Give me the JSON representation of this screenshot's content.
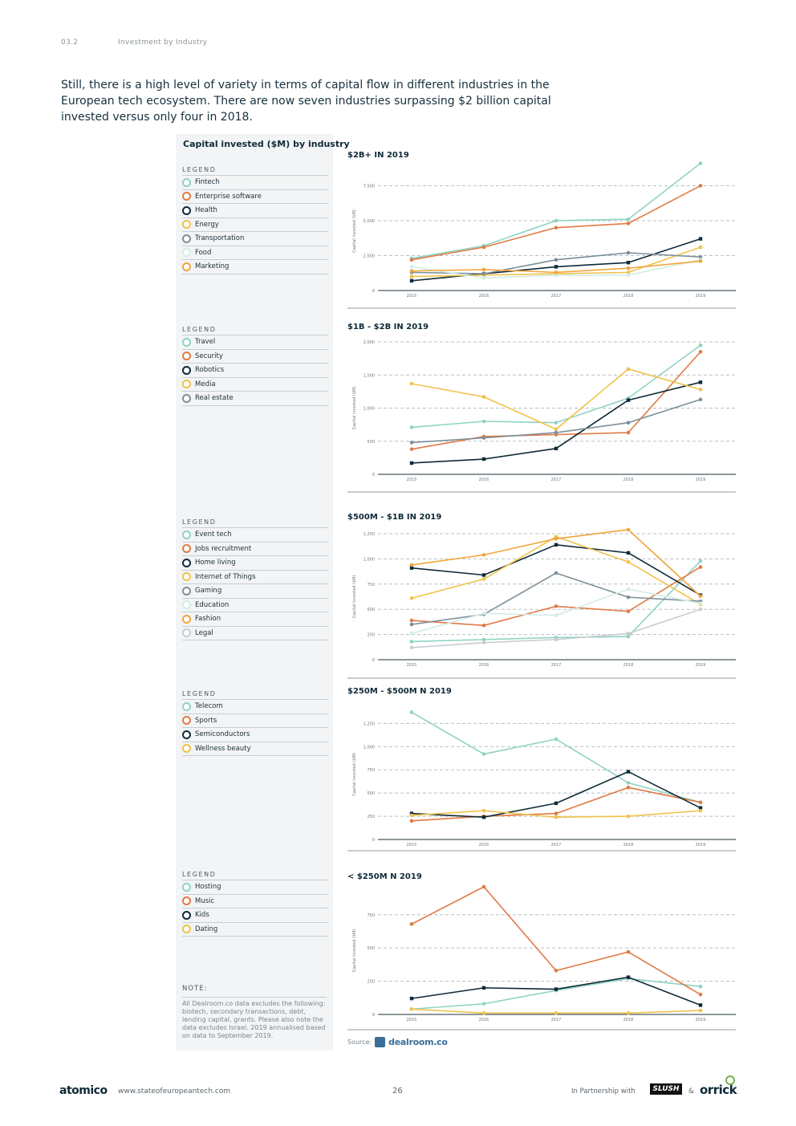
{
  "header": {
    "section": "03.2",
    "title": "Investment by Industry"
  },
  "intro": "Still, there is a high level of variety in terms of capital flow in different industries in the European tech ecosystem. There are now seven industries surpassing $2 billion capital invested versus only four in 2018.",
  "sidebar": {
    "title": "Capital invested ($M) by industry",
    "legend_label": "LEGEND",
    "note_title": "NOTE:",
    "note_text": "All Dealroom.co data excludes the following: biotech, secondary transactions, debt, lending capital, grants. Please also note the data excludes Israel. 2019 annualised based on data to September 2019."
  },
  "source": {
    "label": "Source:",
    "brand": "dealroom.co"
  },
  "footer": {
    "logo": "atomico",
    "url": "www.stateofeuropeantech.com",
    "page": "26",
    "partner_label": "In Partnership with",
    "partner1": "SLUSH",
    "amp": "&",
    "partner2": "orrick"
  },
  "colors": {
    "teal": "#8fd3c4",
    "orange": "#e07a45",
    "navy": "#0f2a38",
    "yellow": "#f0c24a",
    "gray": "#7d8f99",
    "pale": "#d2ece6",
    "amber": "#f0a53a",
    "lightgray": "#c9cdd0"
  },
  "chart_data": [
    {
      "type": "line",
      "title": "$2B+ IN 2019",
      "ylabel": "Capital invested ($M)",
      "categories": [
        "2015",
        "2016",
        "2017",
        "2018",
        "2019"
      ],
      "ylim": [
        0,
        8500
      ],
      "yticks": [
        0,
        2500,
        5000,
        7500
      ],
      "ytick_labels": [
        "0",
        "2,500",
        "5,000",
        "7,500"
      ],
      "series": [
        {
          "name": "Fintech",
          "color": "#8fd3c4",
          "marker": "circle",
          "values": [
            2300,
            3200,
            5000,
            5100,
            9100
          ]
        },
        {
          "name": "Enterprise software",
          "color": "#e07a45",
          "marker": "circle",
          "values": [
            2200,
            3100,
            4500,
            4800,
            7500
          ]
        },
        {
          "name": "Health",
          "color": "#0f2a38",
          "marker": "square",
          "values": [
            700,
            1200,
            1700,
            2000,
            3700
          ]
        },
        {
          "name": "Energy",
          "color": "#f0c24a",
          "marker": "circle",
          "values": [
            1000,
            1100,
            1200,
            1300,
            3100
          ]
        },
        {
          "name": "Transportation",
          "color": "#7d8f99",
          "marker": "circle",
          "values": [
            1300,
            1200,
            2200,
            2700,
            2400
          ]
        },
        {
          "name": "Food",
          "color": "#d2ece6",
          "marker": "circle",
          "values": [
            1700,
            900,
            1100,
            1100,
            2200
          ]
        },
        {
          "name": "Marketing",
          "color": "#f0a53a",
          "marker": "circle",
          "values": [
            1400,
            1500,
            1300,
            1600,
            2100
          ]
        }
      ]
    },
    {
      "type": "line",
      "title": "$1B - $2B IN 2019",
      "ylabel": "Capital invested ($M)",
      "categories": [
        "2015",
        "2016",
        "2017",
        "2018",
        "2019"
      ],
      "ylim": [
        0,
        2000
      ],
      "yticks": [
        0,
        500,
        1000,
        1500,
        2000
      ],
      "ytick_labels": [
        "0",
        "500",
        "1,000",
        "1,500",
        "2,000"
      ],
      "series": [
        {
          "name": "Travel",
          "color": "#8fd3c4",
          "marker": "circle",
          "values": [
            710,
            800,
            780,
            1150,
            1950
          ]
        },
        {
          "name": "Security",
          "color": "#e07a45",
          "marker": "circle",
          "values": [
            380,
            570,
            600,
            630,
            1850
          ]
        },
        {
          "name": "Robotics",
          "color": "#0f2a38",
          "marker": "square",
          "values": [
            170,
            230,
            390,
            1120,
            1390
          ]
        },
        {
          "name": "Media",
          "color": "#f0c24a",
          "marker": "circle",
          "values": [
            1370,
            1170,
            680,
            1590,
            1280
          ]
        },
        {
          "name": "Real estate",
          "color": "#7d8f99",
          "marker": "circle",
          "values": [
            480,
            550,
            630,
            780,
            1130
          ]
        }
      ]
    },
    {
      "type": "line",
      "title": "$500M - $1B IN 2019",
      "ylabel": "Capital invested ($M)",
      "categories": [
        "2015",
        "2016",
        "2017",
        "2018",
        "2019"
      ],
      "ylim": [
        0,
        1250
      ],
      "yticks": [
        0,
        250,
        500,
        750,
        1000,
        1250
      ],
      "ytick_labels": [
        "0",
        "250",
        "500",
        "750",
        "1,000",
        "1,250"
      ],
      "series": [
        {
          "name": "Event tech",
          "color": "#8fd3c4",
          "marker": "circle",
          "values": [
            180,
            200,
            220,
            230,
            980
          ]
        },
        {
          "name": "Jobs recruitment",
          "color": "#e07a45",
          "marker": "circle",
          "values": [
            390,
            340,
            530,
            480,
            920
          ]
        },
        {
          "name": "Home living",
          "color": "#0f2a38",
          "marker": "square",
          "values": [
            910,
            840,
            1140,
            1060,
            640
          ]
        },
        {
          "name": "Internet of Things",
          "color": "#f0c24a",
          "marker": "circle",
          "values": [
            610,
            800,
            1220,
            970,
            550
          ]
        },
        {
          "name": "Gaming",
          "color": "#7d8f99",
          "marker": "circle",
          "values": [
            350,
            450,
            860,
            620,
            580
          ]
        },
        {
          "name": "Education",
          "color": "#d2ece6",
          "marker": "circle",
          "values": [
            260,
            460,
            440,
            700,
            560
          ]
        },
        {
          "name": "Fashion",
          "color": "#f0a53a",
          "marker": "circle",
          "values": [
            940,
            1040,
            1200,
            1290,
            630
          ]
        },
        {
          "name": "Legal",
          "color": "#c9cdd0",
          "marker": "circle",
          "values": [
            120,
            170,
            200,
            260,
            500
          ]
        }
      ]
    },
    {
      "type": "line",
      "title": "$250M - $500M N 2019",
      "ylabel": "Capital invested ($M)",
      "categories": [
        "2015",
        "2016",
        "2017",
        "2018",
        "2019"
      ],
      "ylim": [
        0,
        1400
      ],
      "yticks": [
        0,
        250,
        500,
        750,
        1000,
        1250
      ],
      "ytick_labels": [
        "0",
        "250",
        "500",
        "750",
        "1,000",
        "1,250"
      ],
      "series": [
        {
          "name": "Telecom",
          "color": "#8fd3c4",
          "marker": "circle",
          "values": [
            1370,
            920,
            1080,
            610,
            400
          ]
        },
        {
          "name": "Sports",
          "color": "#e07a45",
          "marker": "circle",
          "values": [
            200,
            250,
            280,
            560,
            400
          ]
        },
        {
          "name": "Semiconductors",
          "color": "#0f2a38",
          "marker": "square",
          "values": [
            280,
            240,
            390,
            730,
            340
          ]
        },
        {
          "name": "Wellness beauty",
          "color": "#f0c24a",
          "marker": "circle",
          "values": [
            260,
            310,
            240,
            250,
            310
          ]
        }
      ]
    },
    {
      "type": "line",
      "title": "< $250M N 2019",
      "ylabel": "Capital invested ($M)",
      "categories": [
        "2015",
        "2016",
        "2017",
        "2018",
        "2019"
      ],
      "ylim": [
        0,
        960
      ],
      "yticks": [
        0,
        250,
        500,
        750
      ],
      "ytick_labels": [
        "0",
        "250",
        "500",
        "750"
      ],
      "series": [
        {
          "name": "Hosting",
          "color": "#8fd3c4",
          "marker": "circle",
          "values": [
            40,
            80,
            180,
            270,
            210
          ]
        },
        {
          "name": "Music",
          "color": "#e07a45",
          "marker": "circle",
          "values": [
            680,
            960,
            330,
            470,
            150
          ]
        },
        {
          "name": "Kids",
          "color": "#0f2a38",
          "marker": "square",
          "values": [
            120,
            200,
            190,
            280,
            70
          ]
        },
        {
          "name": "Dating",
          "color": "#f0c24a",
          "marker": "circle",
          "values": [
            40,
            10,
            10,
            10,
            30
          ]
        }
      ]
    }
  ]
}
